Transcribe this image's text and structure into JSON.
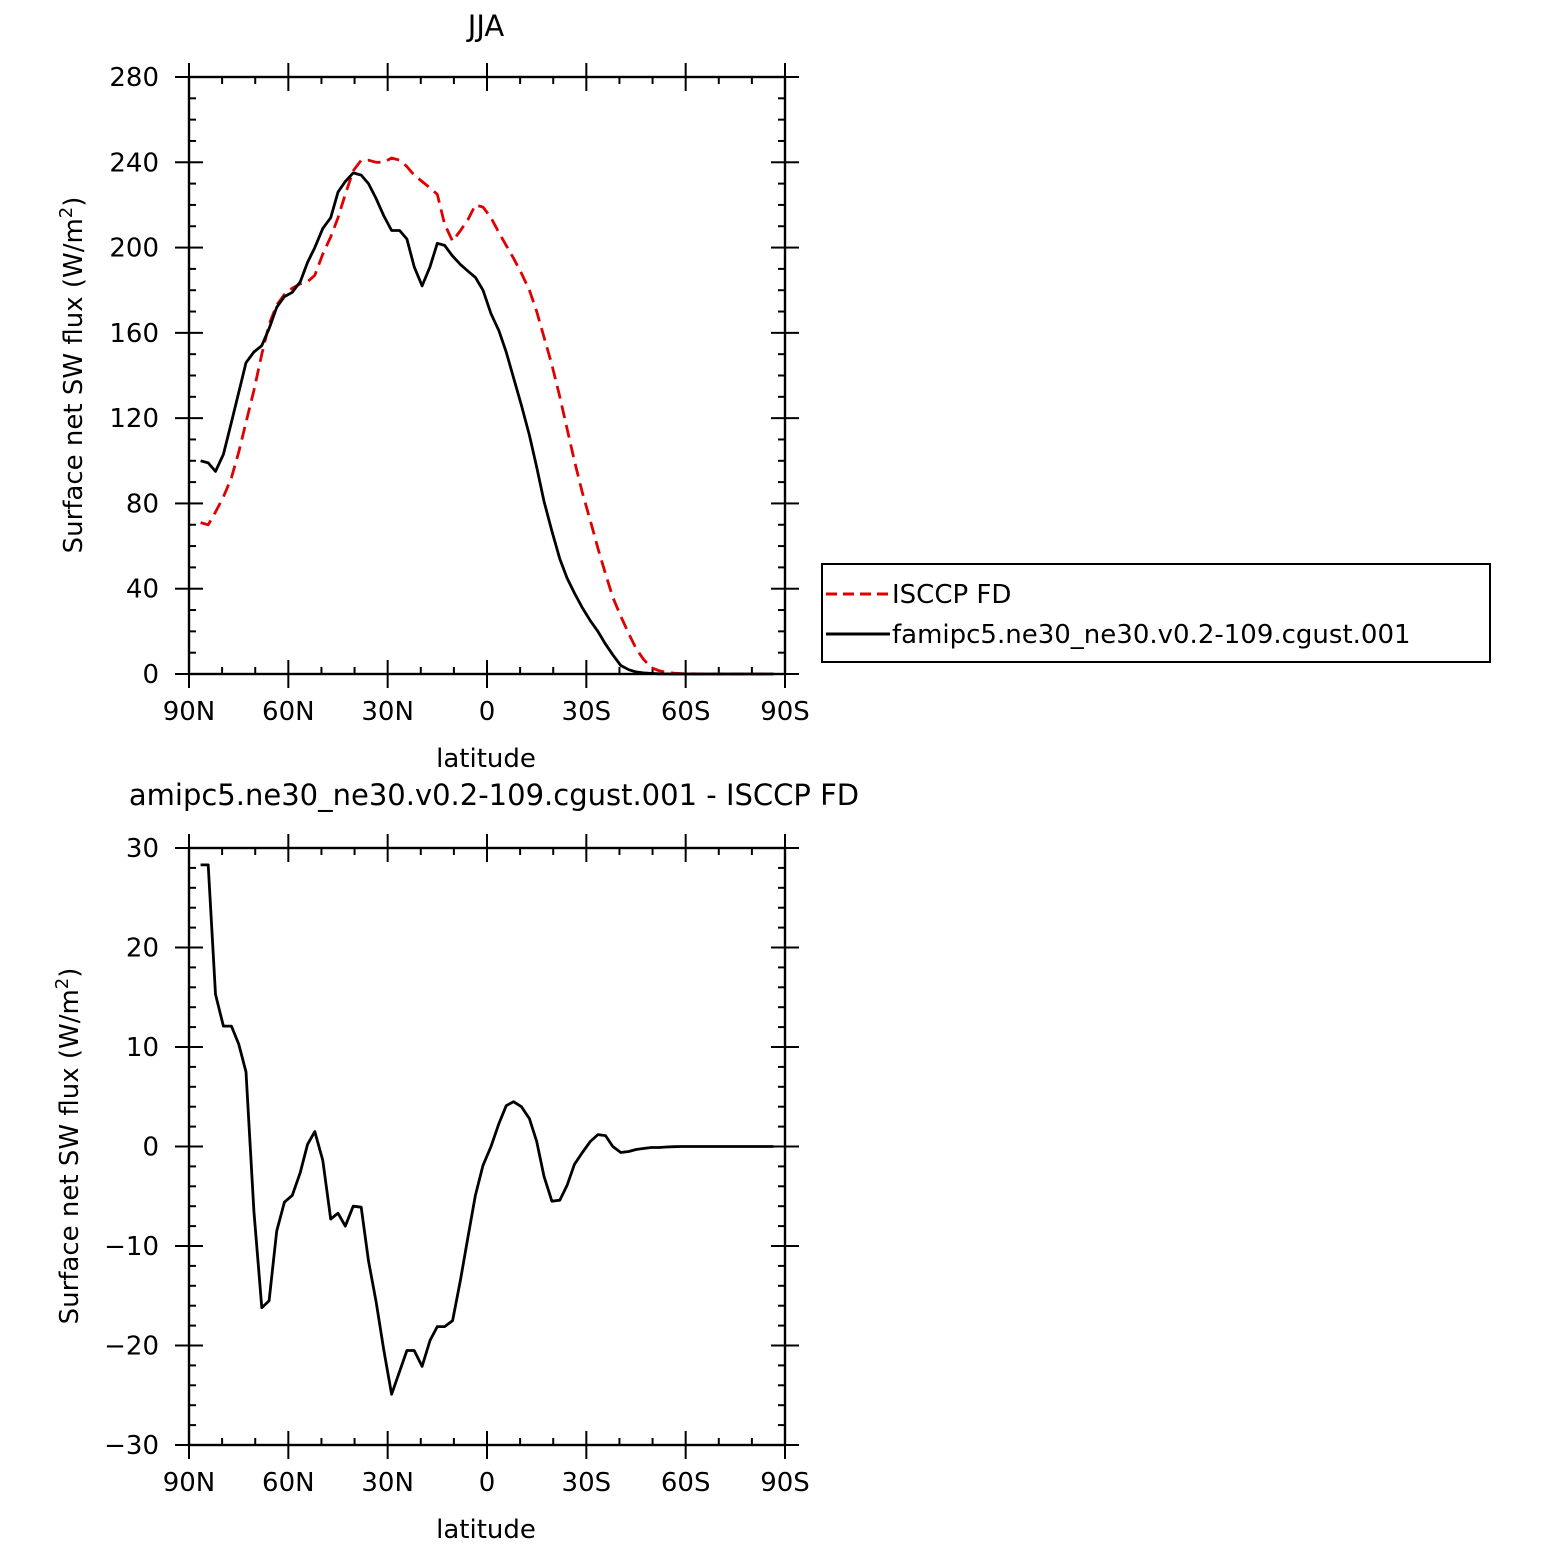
{
  "chart_data": [
    {
      "type": "line",
      "title": "JJA",
      "xlabel": "latitude",
      "ylabel": "Surface net SW flux (W/m²)",
      "ylabel_main": "Surface net SW flux (W/m",
      "ylabel_sup": "2",
      "ylabel_tail": ")",
      "xlim": [
        -90,
        90
      ],
      "ylim": [
        0,
        280
      ],
      "xticks": [
        -90,
        -60,
        -30,
        0,
        30,
        60,
        90
      ],
      "xtick_labels": [
        "90N",
        "60N",
        "30N",
        "0",
        "30S",
        "60S",
        "90S"
      ],
      "yticks": [
        0,
        40,
        80,
        120,
        160,
        200,
        240,
        280
      ],
      "ytick_labels": [
        "0",
        "40",
        "80",
        "120",
        "160",
        "200",
        "240",
        "280"
      ],
      "legend_position": "right",
      "series": [
        {
          "name": "ISCCP FD",
          "color": "#e00000",
          "dash": "dashed",
          "x": [
            -86.5,
            -84.2,
            -82,
            -79.6,
            -77.2,
            -75,
            -72.8,
            -70.4,
            -68,
            -65.8,
            -63.5,
            -61.2,
            -58.8,
            -56.4,
            -54.2,
            -52,
            -49.6,
            -47.2,
            -45,
            -42.8,
            -40.4,
            -38,
            -35.8,
            -33.5,
            -31.2,
            -28.8,
            -26.4,
            -24.2,
            -22,
            -19.6,
            -17.2,
            -15,
            -12.8,
            -10.4,
            -8,
            -5.8,
            -3.5,
            -1.2,
            1.2,
            3.6,
            5.8,
            8,
            10.4,
            12.8,
            15,
            17.2,
            19.6,
            22,
            24.2,
            26.4,
            28.8,
            31.2,
            33.5,
            35.8,
            38,
            40.4,
            42.8,
            45,
            47.2,
            49.6,
            52,
            54.2,
            56.4,
            58.8,
            61.2,
            63.5,
            65.8,
            68,
            70.4,
            72.8,
            75,
            77.2,
            79.6,
            82,
            84.2,
            86.5
          ],
          "values": [
            71,
            70,
            76,
            83,
            92,
            104,
            118,
            133,
            150,
            164,
            173,
            178,
            181,
            183,
            184,
            187,
            197,
            205,
            214,
            225,
            236,
            241,
            241,
            240,
            240,
            242,
            241,
            238,
            234,
            231,
            228,
            225,
            211,
            203,
            208,
            213,
            220,
            219,
            214,
            207,
            201,
            195,
            188,
            180,
            170,
            158,
            145,
            130,
            115,
            100,
            85,
            72,
            59,
            47,
            36,
            27,
            19,
            12,
            7,
            3,
            1.5,
            0.8,
            0.4,
            0.2,
            0.1,
            0.05,
            0.02,
            0,
            0,
            0,
            0,
            0,
            0,
            0,
            0,
            0
          ]
        },
        {
          "name": "famipc5.ne30_ne30.v0.2-109.cgust.001",
          "color": "#000000",
          "dash": "solid",
          "x": [
            -86.5,
            -84.2,
            -82,
            -79.6,
            -77.2,
            -75,
            -72.8,
            -70.4,
            -68,
            -65.8,
            -63.5,
            -61.2,
            -58.8,
            -56.4,
            -54.2,
            -52,
            -49.6,
            -47.2,
            -45,
            -42.8,
            -40.4,
            -38,
            -35.8,
            -33.5,
            -31.2,
            -28.8,
            -26.4,
            -24.2,
            -22,
            -19.6,
            -17.2,
            -15,
            -12.8,
            -10.4,
            -8,
            -5.8,
            -3.5,
            -1.2,
            1.2,
            3.6,
            5.8,
            8,
            10.4,
            12.8,
            15,
            17.2,
            19.6,
            22,
            24.2,
            26.4,
            28.8,
            31.2,
            33.5,
            35.8,
            38,
            40.4,
            42.8,
            45,
            47.2,
            49.6,
            52,
            54.2,
            56.4,
            58.8,
            61.2,
            63.5,
            65.8,
            68,
            70.4,
            72.8,
            75,
            77.2,
            79.6,
            82,
            84.2,
            86.5
          ],
          "values": [
            100,
            99,
            95,
            103,
            118,
            132,
            146,
            151,
            154,
            162,
            172,
            177,
            179,
            184,
            193,
            200,
            209,
            214,
            226,
            231,
            235,
            234,
            230,
            223,
            215,
            208,
            208,
            204,
            191,
            182,
            191,
            202,
            201,
            196,
            192,
            189,
            186,
            180,
            169,
            161,
            151,
            139,
            126,
            112,
            97,
            81,
            67,
            54,
            45,
            38,
            31,
            25,
            20,
            14,
            9,
            4,
            2,
            1,
            0.5,
            0.3,
            0.1,
            0.05,
            0.02,
            0,
            0,
            0,
            0,
            0,
            0,
            0,
            0,
            0,
            0,
            0,
            0,
            0
          ]
        }
      ]
    },
    {
      "type": "line",
      "title": "amipc5.ne30_ne30.v0.2-109.cgust.001 - ISCCP FD",
      "xlabel": "latitude",
      "ylabel": "Surface net SW flux (W/m²)",
      "ylabel_main": "Surface net SW flux (W/m",
      "ylabel_sup": "2",
      "ylabel_tail": ")",
      "xlim": [
        -90,
        90
      ],
      "ylim": [
        -30,
        30
      ],
      "xticks": [
        -90,
        -60,
        -30,
        0,
        30,
        60,
        90
      ],
      "xtick_labels": [
        "90N",
        "60N",
        "30N",
        "0",
        "30S",
        "60S",
        "90S"
      ],
      "yticks": [
        -30,
        -20,
        -10,
        0,
        10,
        20,
        30
      ],
      "ytick_labels": [
        "−30",
        "−20",
        "−10",
        "0",
        "10",
        "20",
        "30"
      ],
      "series": [
        {
          "color": "#000000",
          "dash": "solid",
          "x": [
            -86.5,
            -84.2,
            -82,
            -79.6,
            -77.2,
            -75,
            -72.8,
            -70.4,
            -68,
            -65.8,
            -63.5,
            -61.2,
            -58.8,
            -56.4,
            -54.2,
            -52,
            -49.6,
            -47.2,
            -45,
            -42.8,
            -40.4,
            -38,
            -35.8,
            -33.5,
            -31.2,
            -28.8,
            -26.4,
            -24.2,
            -22,
            -19.6,
            -17.2,
            -15,
            -12.8,
            -10.4,
            -8,
            -5.8,
            -3.5,
            -1.2,
            1.2,
            3.6,
            5.8,
            8,
            10.4,
            12.8,
            15,
            17.2,
            19.6,
            22,
            24.2,
            26.4,
            28.8,
            31.2,
            33.5,
            35.8,
            38,
            40.4,
            42.8,
            45,
            47.2,
            49.6,
            52,
            54.2,
            56.4,
            58.8,
            61.2,
            63.5,
            65.8,
            68,
            70.4,
            72.8,
            75,
            77.2,
            79.6,
            82,
            84.2,
            86.5
          ],
          "values": [
            28.3,
            28.3,
            15.3,
            12.1,
            12.1,
            10.3,
            7.5,
            -6.5,
            -16.2,
            -15.5,
            -8.5,
            -5.6,
            -4.9,
            -2.6,
            0.2,
            1.5,
            -1.4,
            -7.3,
            -6.7,
            -8,
            -6,
            -6.1,
            -11.5,
            -15.6,
            -20.4,
            -24.9,
            -22.6,
            -20.5,
            -20.5,
            -22.1,
            -19.5,
            -18.1,
            -18.1,
            -17.5,
            -13.4,
            -9.2,
            -4.9,
            -1.9,
            0,
            2.3,
            4.1,
            4.5,
            4,
            2.8,
            0.5,
            -3,
            -5.5,
            -5.4,
            -3.9,
            -1.8,
            -0.6,
            0.5,
            1.2,
            1.1,
            0,
            -0.6,
            -0.5,
            -0.3,
            -0.2,
            -0.1,
            -0.1,
            -0.05,
            -0.02,
            0,
            0,
            0,
            0,
            0,
            0,
            0,
            0,
            0,
            0,
            0,
            0,
            0
          ]
        }
      ]
    }
  ]
}
